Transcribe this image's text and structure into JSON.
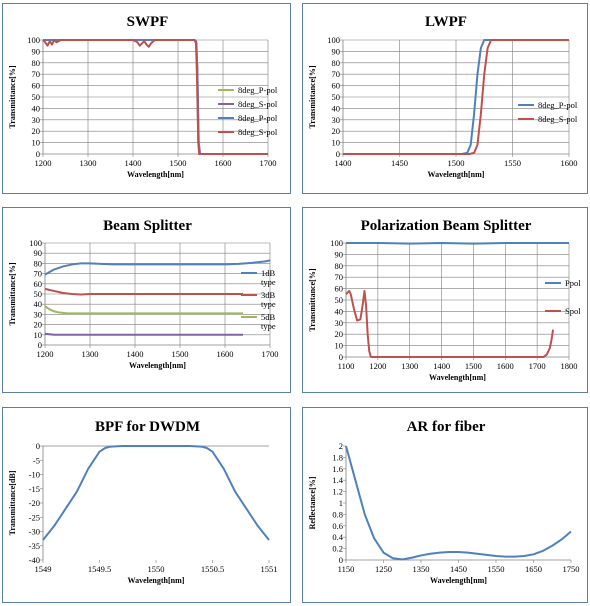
{
  "chart_data": [
    {
      "id": "c0",
      "type": "line",
      "title": "SWPF",
      "xlabel": "Wavelength[nm]",
      "ylabel": "Transmittance[%]",
      "xlim": [
        1200,
        1700
      ],
      "ylim": [
        0,
        100
      ],
      "xticks": [
        1200,
        1300,
        1400,
        1500,
        1600,
        1700
      ],
      "xtick_labels": [
        "1200",
        "1300",
        "1400",
        "1500",
        "1600",
        "1700"
      ],
      "yticks": [
        0,
        10,
        20,
        30,
        40,
        50,
        60,
        70,
        80,
        90,
        100
      ],
      "ytick_labels": [
        "0",
        "10",
        "20",
        "30",
        "40",
        "50",
        "60",
        "70",
        "80",
        "90",
        "100"
      ],
      "grid": true,
      "legend_position": "right",
      "series": [
        {
          "name": "8deg_P-pol",
          "color": "#9bbb59",
          "x": [
            1200,
            1535,
            1540,
            1543,
            1546,
            1549,
            1700
          ],
          "y": [
            100,
            100,
            99,
            75,
            10,
            0,
            0
          ]
        },
        {
          "name": "8deg_S-pol",
          "color": "#8064a2",
          "x": [
            1200,
            1535,
            1540,
            1543,
            1546,
            1549,
            1700
          ],
          "y": [
            100,
            100,
            99,
            75,
            10,
            0,
            0
          ]
        },
        {
          "name": "8deg_P-pol",
          "color": "#4f81bd",
          "x": [
            1200,
            1537,
            1541,
            1543,
            1545,
            1548,
            1700
          ],
          "y": [
            100,
            100,
            98,
            70,
            10,
            0,
            0
          ]
        },
        {
          "name": "8deg_S-pol",
          "color": "#c0504d",
          "x": [
            1200,
            1205,
            1210,
            1215,
            1220,
            1225,
            1230,
            1240,
            1260,
            1400,
            1410,
            1415,
            1420,
            1425,
            1430,
            1435,
            1440,
            1445,
            1450,
            1460,
            1537,
            1540,
            1542,
            1545,
            1547,
            1700
          ],
          "y": [
            100,
            98,
            95,
            99,
            96,
            100,
            98,
            100,
            100,
            100,
            98,
            95,
            97,
            99,
            96,
            94,
            97,
            99,
            100,
            100,
            100,
            97,
            70,
            12,
            0,
            0
          ]
        }
      ]
    },
    {
      "id": "c1",
      "type": "line",
      "title": "LWPF",
      "xlabel": "Wavelength[nm]",
      "ylabel": "Transmittance[%]",
      "xlim": [
        1400,
        1600
      ],
      "ylim": [
        0,
        100
      ],
      "xticks": [
        1400,
        1450,
        1500,
        1550,
        1600
      ],
      "xtick_labels": [
        "1400",
        "1450",
        "1500",
        "1550",
        "1600"
      ],
      "yticks": [
        0,
        10,
        20,
        30,
        40,
        50,
        60,
        70,
        80,
        90,
        100
      ],
      "ytick_labels": [
        "0",
        "10",
        "20",
        "30",
        "40",
        "50",
        "60",
        "70",
        "80",
        "90",
        "100"
      ],
      "grid": true,
      "legend_position": "right",
      "series": [
        {
          "name": "8deg_P-pol",
          "color": "#4f81bd",
          "x": [
            1400,
            1505,
            1510,
            1513,
            1516,
            1519,
            1522,
            1525,
            1600
          ],
          "y": [
            0,
            0,
            1,
            8,
            35,
            70,
            93,
            100,
            100
          ]
        },
        {
          "name": "8deg_S-pol",
          "color": "#c0504d",
          "x": [
            1400,
            1512,
            1516,
            1519,
            1522,
            1525,
            1528,
            1531,
            1600
          ],
          "y": [
            0,
            0,
            1,
            8,
            35,
            70,
            93,
            100,
            100
          ]
        }
      ]
    },
    {
      "id": "c2",
      "type": "line",
      "title": "Beam Splitter",
      "xlabel": "Wavelength[nm]",
      "ylabel": "Transmittance[%]",
      "xlim": [
        1200,
        1700
      ],
      "ylim": [
        0,
        100
      ],
      "xticks": [
        1200,
        1300,
        1400,
        1500,
        1600,
        1700
      ],
      "xtick_labels": [
        "1200",
        "1300",
        "1400",
        "1500",
        "1600",
        "1700"
      ],
      "yticks": [
        0,
        10,
        20,
        30,
        40,
        50,
        60,
        70,
        80,
        90,
        100
      ],
      "ytick_labels": [
        "0",
        "10",
        "20",
        "30",
        "40",
        "50",
        "60",
        "70",
        "80",
        "90",
        "100"
      ],
      "grid": true,
      "legend_position": "right",
      "series": [
        {
          "name": "1dB type",
          "color": "#4f81bd",
          "x": [
            1200,
            1220,
            1240,
            1260,
            1280,
            1300,
            1350,
            1400,
            1450,
            1500,
            1550,
            1600,
            1630,
            1660,
            1690,
            1700
          ],
          "y": [
            69,
            74,
            77,
            79,
            80,
            80,
            79,
            79,
            79,
            79,
            79,
            79,
            79.5,
            80.5,
            82,
            83
          ]
        },
        {
          "name": "3dB type",
          "color": "#c0504d",
          "x": [
            1200,
            1220,
            1240,
            1260,
            1280,
            1300,
            1350,
            1400,
            1450,
            1500,
            1550,
            1600,
            1640
          ],
          "y": [
            55,
            53,
            51,
            50,
            49.5,
            50,
            50,
            50,
            50,
            50,
            50,
            50,
            50
          ]
        },
        {
          "name": "5dB type",
          "color": "#9bbb59",
          "x": [
            1200,
            1210,
            1220,
            1230,
            1240,
            1250,
            1270,
            1300,
            1400,
            1500,
            1600,
            1640
          ],
          "y": [
            38,
            35,
            33,
            32,
            31.5,
            31,
            31,
            31,
            31,
            31,
            31,
            31
          ]
        },
        {
          "name": "",
          "color": "#8064a2",
          "x": [
            1200,
            1210,
            1220,
            1240,
            1300,
            1400,
            1500,
            1600,
            1640
          ],
          "y": [
            11,
            10.5,
            10,
            10,
            10,
            10,
            10,
            10,
            10
          ]
        }
      ]
    },
    {
      "id": "c3",
      "type": "line",
      "title": "Polarization Beam Splitter",
      "xlabel": "Wavelength[nm]",
      "ylabel": "Transmittance[%]",
      "xlim": [
        1100,
        1800
      ],
      "ylim": [
        0,
        100
      ],
      "xticks": [
        1100,
        1200,
        1300,
        1400,
        1500,
        1600,
        1700,
        1800
      ],
      "xtick_labels": [
        "1100",
        "1200",
        "1300",
        "1400",
        "1500",
        "1600",
        "1700",
        "1800"
      ],
      "yticks": [
        0,
        10,
        20,
        30,
        40,
        50,
        60,
        70,
        80,
        90,
        100
      ],
      "ytick_labels": [
        "0",
        "10",
        "20",
        "30",
        "40",
        "50",
        "60",
        "70",
        "80",
        "90",
        "100"
      ],
      "grid": true,
      "legend_position": "right",
      "series": [
        {
          "name": "Ppol",
          "color": "#4f81bd",
          "x": [
            1100,
            1200,
            1300,
            1400,
            1500,
            1600,
            1700,
            1800
          ],
          "y": [
            100,
            100,
            99.5,
            100,
            99.5,
            100,
            100,
            100
          ]
        },
        {
          "name": "Spol",
          "color": "#c0504d",
          "x": [
            1100,
            1110,
            1115,
            1125,
            1135,
            1145,
            1152,
            1158,
            1163,
            1168,
            1173,
            1178,
            1185,
            1700,
            1720,
            1730,
            1740,
            1745,
            1750
          ],
          "y": [
            55,
            58,
            55,
            42,
            32,
            33,
            45,
            58,
            45,
            20,
            5,
            0,
            0,
            0,
            0,
            2,
            8,
            15,
            24
          ]
        }
      ]
    },
    {
      "id": "c4",
      "type": "line",
      "title": "BPF for DWDM",
      "xlabel": "Wavelength[nm]",
      "ylabel": "Transmittance[dB]",
      "xlim": [
        1549,
        1551
      ],
      "ylim": [
        -40,
        0
      ],
      "xticks": [
        1549,
        1549.5,
        1550,
        1550.5,
        1551
      ],
      "xtick_labels": [
        "1549",
        "1549.5",
        "1550",
        "1550.5",
        "1551"
      ],
      "yticks": [
        -40,
        -35,
        -30,
        -25,
        -20,
        -15,
        -10,
        -5,
        0
      ],
      "ytick_labels": [
        "-40",
        "-35",
        "-30",
        "-25",
        "-20",
        "-15",
        "-10",
        "-5",
        "0"
      ],
      "grid": false,
      "legend_position": "none",
      "series": [
        {
          "name": "",
          "color": "#4f81bd",
          "x": [
            1549,
            1549.1,
            1549.2,
            1549.3,
            1549.4,
            1549.5,
            1549.55,
            1549.6,
            1549.7,
            1550,
            1550.3,
            1550.4,
            1550.45,
            1550.5,
            1550.6,
            1550.7,
            1550.8,
            1550.9,
            1551
          ],
          "y": [
            -33,
            -28,
            -22,
            -16,
            -8,
            -2,
            -0.7,
            -0.2,
            0,
            0,
            0,
            -0.2,
            -0.7,
            -2,
            -8,
            -16,
            -22,
            -28,
            -33
          ]
        }
      ]
    },
    {
      "id": "c5",
      "type": "line",
      "title": "AR for fiber",
      "xlabel": "Wavelength[nm]",
      "ylabel": "Reflectance[%]",
      "xlim": [
        1150,
        1750
      ],
      "ylim": [
        0,
        2
      ],
      "xticks": [
        1150,
        1250,
        1350,
        1450,
        1550,
        1650,
        1750
      ],
      "xtick_labels": [
        "1150",
        "1250",
        "1350",
        "1450",
        "1550",
        "1650",
        "1750"
      ],
      "yticks": [
        0,
        0.2,
        0.4,
        0.6,
        0.8,
        1,
        1.2,
        1.4,
        1.6,
        1.8,
        2
      ],
      "ytick_labels": [
        "0",
        "0.2",
        "0.4",
        "0.6",
        "0.8",
        "1",
        "1.2",
        "1.4",
        "1.6",
        "1.8",
        "2"
      ],
      "grid": false,
      "legend_position": "none",
      "series": [
        {
          "name": "",
          "color": "#4f81bd",
          "x": [
            1150,
            1175,
            1200,
            1225,
            1250,
            1275,
            1300,
            1325,
            1350,
            1375,
            1400,
            1425,
            1450,
            1475,
            1500,
            1525,
            1550,
            1575,
            1600,
            1625,
            1650,
            1675,
            1700,
            1725,
            1750
          ],
          "y": [
            2.0,
            1.4,
            0.8,
            0.38,
            0.13,
            0.03,
            0.01,
            0.04,
            0.08,
            0.11,
            0.13,
            0.14,
            0.14,
            0.13,
            0.11,
            0.09,
            0.07,
            0.06,
            0.06,
            0.07,
            0.1,
            0.16,
            0.25,
            0.36,
            0.5
          ]
        }
      ]
    }
  ]
}
